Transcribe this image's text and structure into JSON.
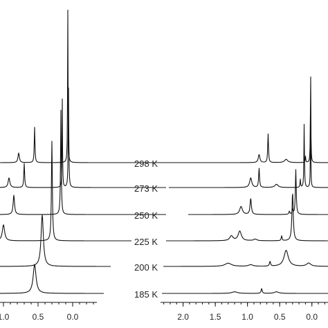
{
  "chart_data": [
    {
      "type": "line",
      "title": "",
      "xlabel": "",
      "ylabel": "",
      "x_reversed": true,
      "xlim": [
        1.05,
        -0.35
      ],
      "x_ticks": [
        {
          "value": 1.0,
          "label": "1.0"
        },
        {
          "value": 0.5,
          "label": "0.5"
        },
        {
          "value": 0.0,
          "label": "0.0"
        }
      ],
      "series": [
        {
          "temperature": "298 K",
          "peaks": [
            {
              "x": 0.78,
              "height": 0.06,
              "width": 0.012
            },
            {
              "x": 0.55,
              "height": 0.22,
              "width": 0.006
            },
            {
              "x": 0.07,
              "height": 0.95,
              "width": 0.004
            }
          ]
        },
        {
          "temperature": "273 K",
          "peaks": [
            {
              "x": 0.92,
              "height": 0.06,
              "width": 0.015
            },
            {
              "x": 0.7,
              "height": 0.15,
              "width": 0.007
            },
            {
              "x": 0.06,
              "height": 0.62,
              "width": 0.005
            },
            {
              "x": 0.15,
              "height": 0.55,
              "width": 0.004
            }
          ]
        },
        {
          "temperature": "250 K",
          "peaks": [
            {
              "x": 0.85,
              "height": 0.12,
              "width": 0.012
            },
            {
              "x": 0.17,
              "height": 0.65,
              "width": 0.006
            }
          ]
        },
        {
          "temperature": "225 K",
          "peaks": [
            {
              "x": 1.0,
              "height": 0.1,
              "width": 0.02
            },
            {
              "x": 0.3,
              "height": 0.62,
              "width": 0.008
            }
          ]
        },
        {
          "temperature": "200 K",
          "peaks": [
            {
              "x": 0.44,
              "height": 0.32,
              "width": 0.02
            }
          ]
        },
        {
          "temperature": "185 K",
          "peaks": [
            {
              "x": 0.55,
              "height": 0.18,
              "width": 0.025
            }
          ]
        }
      ]
    },
    {
      "type": "line",
      "title": "",
      "xlabel": "",
      "ylabel": "",
      "x_reversed": true,
      "xlim": [
        2.35,
        -0.25
      ],
      "x_ticks": [
        {
          "value": 2.0,
          "label": "2.0"
        },
        {
          "value": 1.5,
          "label": "1.5"
        },
        {
          "value": 1.0,
          "label": "1.0"
        },
        {
          "value": 0.5,
          "label": "0.5"
        },
        {
          "value": 0.0,
          "label": "0.0"
        }
      ],
      "series": [
        {
          "temperature": "298 K",
          "peaks": [
            {
              "x": 0.82,
              "height": 0.05,
              "width": 0.015
            },
            {
              "x": 0.68,
              "height": 0.18,
              "width": 0.007
            },
            {
              "x": 0.4,
              "height": 0.02,
              "width": 0.03
            },
            {
              "x": 0.1,
              "height": 0.04,
              "width": 0.005
            },
            {
              "x": 0.02,
              "height": 0.6,
              "width": 0.004
            }
          ]
        },
        {
          "temperature": "273 K",
          "peaks": [
            {
              "x": 0.95,
              "height": 0.06,
              "width": 0.02
            },
            {
              "x": 0.82,
              "height": 0.12,
              "width": 0.008
            },
            {
              "x": 0.55,
              "height": 0.02,
              "width": 0.03
            },
            {
              "x": 0.18,
              "height": 0.05,
              "width": 0.005
            },
            {
              "x": 0.12,
              "height": 0.4,
              "width": 0.005
            },
            {
              "x": 0.02,
              "height": 0.45,
              "width": 0.004
            }
          ]
        },
        {
          "temperature": "250 K",
          "peaks": [
            {
              "x": 1.1,
              "height": 0.05,
              "width": 0.025
            },
            {
              "x": 0.95,
              "height": 0.1,
              "width": 0.012
            },
            {
              "x": 0.35,
              "height": 0.02,
              "width": 0.008
            },
            {
              "x": 0.3,
              "height": 0.03,
              "width": 0.008
            },
            {
              "x": 0.25,
              "height": 0.28,
              "width": 0.008
            }
          ]
        },
        {
          "temperature": "225 K",
          "peaks": [
            {
              "x": 1.25,
              "height": 0.03,
              "width": 0.03
            },
            {
              "x": 1.12,
              "height": 0.06,
              "width": 0.03
            },
            {
              "x": 0.88,
              "height": 0.01,
              "width": 0.03
            },
            {
              "x": 0.47,
              "height": 0.03,
              "width": 0.008
            },
            {
              "x": 0.3,
              "height": 0.3,
              "width": 0.012
            }
          ]
        },
        {
          "temperature": "200 K",
          "peaks": [
            {
              "x": 1.3,
              "height": 0.02,
              "width": 0.06
            },
            {
              "x": 0.95,
              "height": 0.01,
              "width": 0.04
            },
            {
              "x": 0.65,
              "height": 0.03,
              "width": 0.01
            },
            {
              "x": 0.4,
              "height": 0.1,
              "width": 0.04
            },
            {
              "x": 0.05,
              "height": 0.02,
              "width": 0.04
            }
          ]
        },
        {
          "temperature": "185 K",
          "peaks": [
            {
              "x": 1.2,
              "height": 0.01,
              "width": 0.05
            },
            {
              "x": 0.78,
              "height": 0.03,
              "width": 0.01
            },
            {
              "x": 0.55,
              "height": 0.01,
              "width": 0.04
            }
          ]
        }
      ]
    }
  ]
}
